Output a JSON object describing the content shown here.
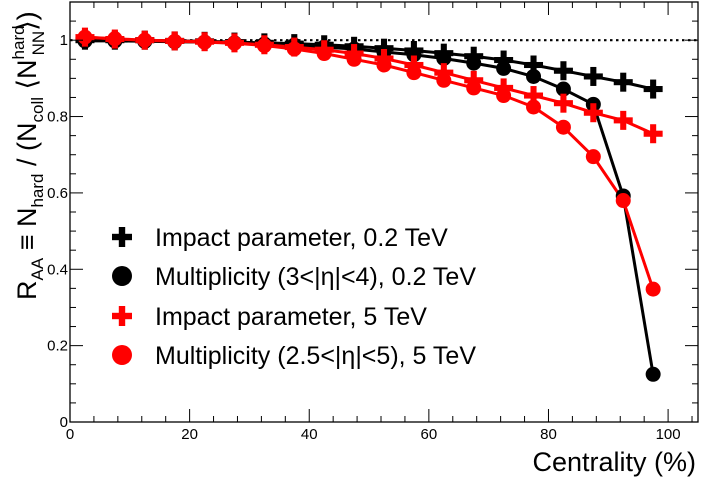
{
  "chart_data": {
    "type": "line",
    "title": "",
    "xlabel": "Centrality (%)",
    "ylabel": {
      "main": "R",
      "main_sub": "AA",
      "equiv": " ≡ N",
      "equiv_sub": "hard",
      "slash": " / (N",
      "coll_sub": "coll",
      "bracket_open": " ⟨N",
      "nn_sup": "hard",
      "nn_sub": "NN",
      "bracket_close": "⟩)"
    },
    "xlim": [
      0,
      105
    ],
    "ylim": [
      0,
      1.1
    ],
    "x_ticks": [
      0,
      20,
      40,
      60,
      80,
      100
    ],
    "x_tick_labels": [
      "0",
      "20",
      "40",
      "60",
      "80",
      "100"
    ],
    "y_ticks": [
      0,
      0.2,
      0.4,
      0.6,
      0.8,
      1
    ],
    "y_tick_labels": [
      "0",
      "0.2",
      "0.4",
      "0.6",
      "0.8",
      "1"
    ],
    "reference_line": 1.0,
    "grid": false,
    "legend_position": "left-middle",
    "x": [
      2.5,
      7.5,
      12.5,
      17.5,
      22.5,
      27.5,
      32.5,
      37.5,
      42.5,
      47.5,
      52.5,
      57.5,
      62.5,
      67.5,
      72.5,
      77.5,
      82.5,
      87.5,
      92.5,
      97.5
    ],
    "series": [
      {
        "name": "Impact parameter, 0.2 TeV",
        "color": "#000000",
        "marker": "cross",
        "values": [
          1.0,
          1.0,
          1.0,
          0.998,
          0.997,
          0.995,
          0.993,
          0.991,
          0.988,
          0.984,
          0.979,
          0.973,
          0.966,
          0.958,
          0.948,
          0.935,
          0.92,
          0.905,
          0.89,
          0.872
        ]
      },
      {
        "name": "Multiplicity (3<|η|<4), 0.2 TeV",
        "color": "#000000",
        "marker": "circle",
        "values": [
          0.998,
          0.998,
          0.997,
          0.996,
          0.995,
          0.993,
          0.99,
          0.987,
          0.982,
          0.977,
          0.969,
          0.962,
          0.952,
          0.94,
          0.926,
          0.905,
          0.872,
          0.832,
          0.592,
          0.125
        ]
      },
      {
        "name": "Impact parameter, 5 TeV",
        "color": "#ff0000",
        "marker": "cross",
        "values": [
          1.008,
          1.003,
          1.0,
          0.998,
          0.996,
          0.993,
          0.988,
          0.982,
          0.975,
          0.965,
          0.952,
          0.935,
          0.915,
          0.895,
          0.875,
          0.855,
          0.835,
          0.81,
          0.79,
          0.755
        ]
      },
      {
        "name": "Multiplicity (2.5<|η|<5), 5 TeV",
        "color": "#ff0000",
        "marker": "circle",
        "values": [
          1.008,
          1.004,
          1.0,
          0.997,
          0.995,
          0.992,
          0.986,
          0.977,
          0.965,
          0.95,
          0.935,
          0.915,
          0.895,
          0.875,
          0.855,
          0.825,
          0.772,
          0.695,
          0.58,
          0.348
        ]
      }
    ]
  }
}
